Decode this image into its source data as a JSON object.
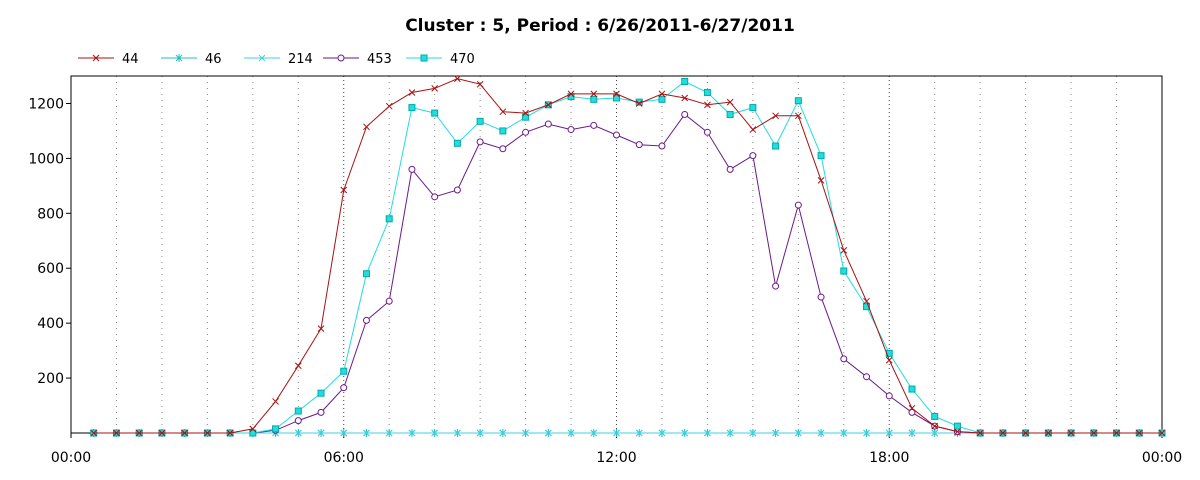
{
  "chart_data": {
    "type": "line",
    "title": "Cluster : 5, Period : 6/26/2011-6/27/2011",
    "xlabel": "",
    "ylabel": "",
    "x_tick_labels": [
      "00:00",
      "06:00",
      "12:00",
      "18:00",
      "00:00"
    ],
    "x_tick_values": [
      0,
      6,
      12,
      18,
      24
    ],
    "xlim": [
      0,
      24
    ],
    "y_ticks": [
      200,
      400,
      600,
      800,
      1000,
      1200
    ],
    "ylim": [
      0,
      1300
    ],
    "grid": "vertical dotted",
    "legend_position": "top-left",
    "x": [
      0.5,
      1,
      1.5,
      2,
      2.5,
      3,
      3.5,
      4,
      4.5,
      5,
      5.5,
      6,
      6.5,
      7,
      7.5,
      8,
      8.5,
      9,
      9.5,
      10,
      10.5,
      11,
      11.5,
      12,
      12.5,
      13,
      13.5,
      14,
      14.5,
      15,
      15.5,
      16,
      16.5,
      17,
      17.5,
      18,
      18.5,
      19,
      19.5,
      20,
      20.5,
      21,
      21.5,
      22,
      22.5,
      23,
      23.5,
      24
    ],
    "series": [
      {
        "name": "44",
        "color": "#aa1111",
        "marker": "x",
        "values": [
          0,
          0,
          0,
          0,
          0,
          0,
          0,
          15,
          115,
          245,
          380,
          885,
          1115,
          1190,
          1240,
          1255,
          1290,
          1270,
          1170,
          1165,
          1195,
          1235,
          1235,
          1235,
          1200,
          1235,
          1220,
          1195,
          1205,
          1105,
          1155,
          1155,
          920,
          665,
          480,
          265,
          90,
          25,
          5,
          0,
          0,
          0,
          0,
          0,
          0,
          0,
          0,
          0
        ]
      },
      {
        "name": "46",
        "color": "#20c0c0",
        "marker": "star",
        "values": [
          0,
          0,
          0,
          0,
          0,
          0,
          0,
          0,
          0,
          0,
          0,
          0,
          0,
          0,
          0,
          0,
          0,
          0,
          0,
          0,
          0,
          0,
          0,
          0,
          0,
          0,
          0,
          0,
          0,
          0,
          0,
          0,
          0,
          0,
          0,
          0,
          0,
          0,
          0,
          0,
          0,
          0,
          0,
          0,
          0,
          0,
          0,
          0
        ]
      },
      {
        "name": "214",
        "color": "#40d0e0",
        "marker": "x",
        "values": [
          0,
          0,
          0,
          0,
          0,
          0,
          0,
          0,
          0,
          0,
          0,
          0,
          0,
          0,
          0,
          0,
          0,
          0,
          0,
          0,
          0,
          0,
          0,
          0,
          0,
          0,
          0,
          0,
          0,
          0,
          0,
          0,
          0,
          0,
          0,
          0,
          0,
          0,
          0,
          0,
          0,
          0,
          0,
          0,
          0,
          0,
          0,
          0
        ]
      },
      {
        "name": "453",
        "color": "#6a1a8a",
        "marker": "circle",
        "values": [
          0,
          0,
          0,
          0,
          0,
          0,
          0,
          0,
          10,
          45,
          75,
          165,
          410,
          480,
          960,
          860,
          885,
          1060,
          1035,
          1095,
          1125,
          1105,
          1120,
          1085,
          1050,
          1045,
          1160,
          1095,
          960,
          1010,
          535,
          830,
          495,
          270,
          205,
          135,
          75,
          25,
          5,
          0,
          0,
          0,
          0,
          0,
          0,
          0,
          0,
          0
        ]
      },
      {
        "name": "470",
        "color": "#22dddd",
        "marker": "square",
        "values": [
          0,
          0,
          0,
          0,
          0,
          0,
          0,
          0,
          15,
          80,
          145,
          225,
          580,
          780,
          1185,
          1165,
          1055,
          1135,
          1100,
          1150,
          1195,
          1225,
          1215,
          1220,
          1205,
          1215,
          1280,
          1240,
          1160,
          1185,
          1045,
          1210,
          1010,
          590,
          460,
          290,
          160,
          60,
          25,
          0,
          0,
          0,
          0,
          0,
          0,
          0,
          0,
          0
        ]
      }
    ]
  }
}
